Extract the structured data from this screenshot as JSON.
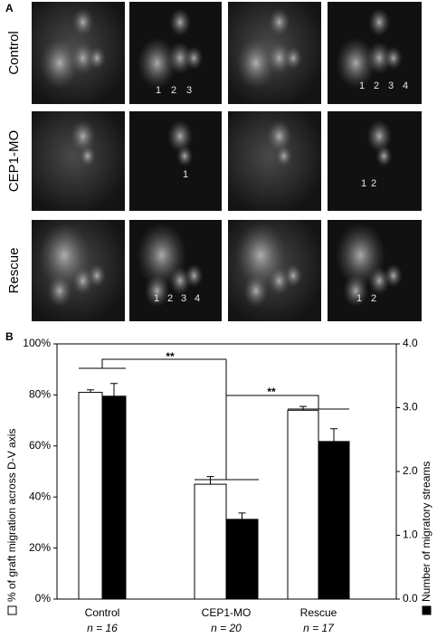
{
  "panel_a": {
    "label": "A",
    "rows": [
      {
        "label": "Control",
        "images": [
          [],
          [
            "1",
            "2",
            "3"
          ],
          [],
          [
            "1",
            "2",
            "3",
            "4"
          ]
        ]
      },
      {
        "label": "CEP1-MO",
        "images": [
          [],
          [
            "1"
          ],
          [],
          [
            "1",
            "2"
          ]
        ]
      },
      {
        "label": "Rescue",
        "images": [
          [],
          [
            "1",
            "2",
            "3",
            "4"
          ],
          [],
          [
            "1",
            "2"
          ]
        ]
      }
    ]
  },
  "chart_data": {
    "type": "bar",
    "panel_label": "B",
    "categories": [
      "Control",
      "CEP1-MO",
      "Rescue"
    ],
    "category_notes": [
      "n = 16",
      "n = 20",
      "n = 17"
    ],
    "series": [
      {
        "name": "% of graft migration across D-V axis",
        "color": "#ffffff",
        "values": [
          81,
          45,
          74
        ],
        "errors": [
          1,
          3,
          1.5
        ]
      },
      {
        "name": "Number of migratory streams",
        "color": "#000000",
        "axis": "y2",
        "values": [
          3.18,
          1.25,
          2.47
        ],
        "errors": [
          0.2,
          0.1,
          0.2
        ]
      }
    ],
    "ylim": [
      0,
      100
    ],
    "yticks": [
      {
        "value": 0,
        "label": "0%"
      },
      {
        "value": 20,
        "label": "20%"
      },
      {
        "value": 40,
        "label": "40%"
      },
      {
        "value": 60,
        "label": "60%"
      },
      {
        "value": 80,
        "label": "80%"
      },
      {
        "value": 100,
        "label": "100%"
      }
    ],
    "y2lim": [
      0,
      4
    ],
    "y2ticks": [
      {
        "value": 0,
        "label": "0.0"
      },
      {
        "value": 1,
        "label": "1.0"
      },
      {
        "value": 2,
        "label": "2.0"
      },
      {
        "value": 3,
        "label": "3.0"
      },
      {
        "value": 4,
        "label": "4.0"
      }
    ],
    "annotations": [
      "**",
      "**"
    ]
  }
}
